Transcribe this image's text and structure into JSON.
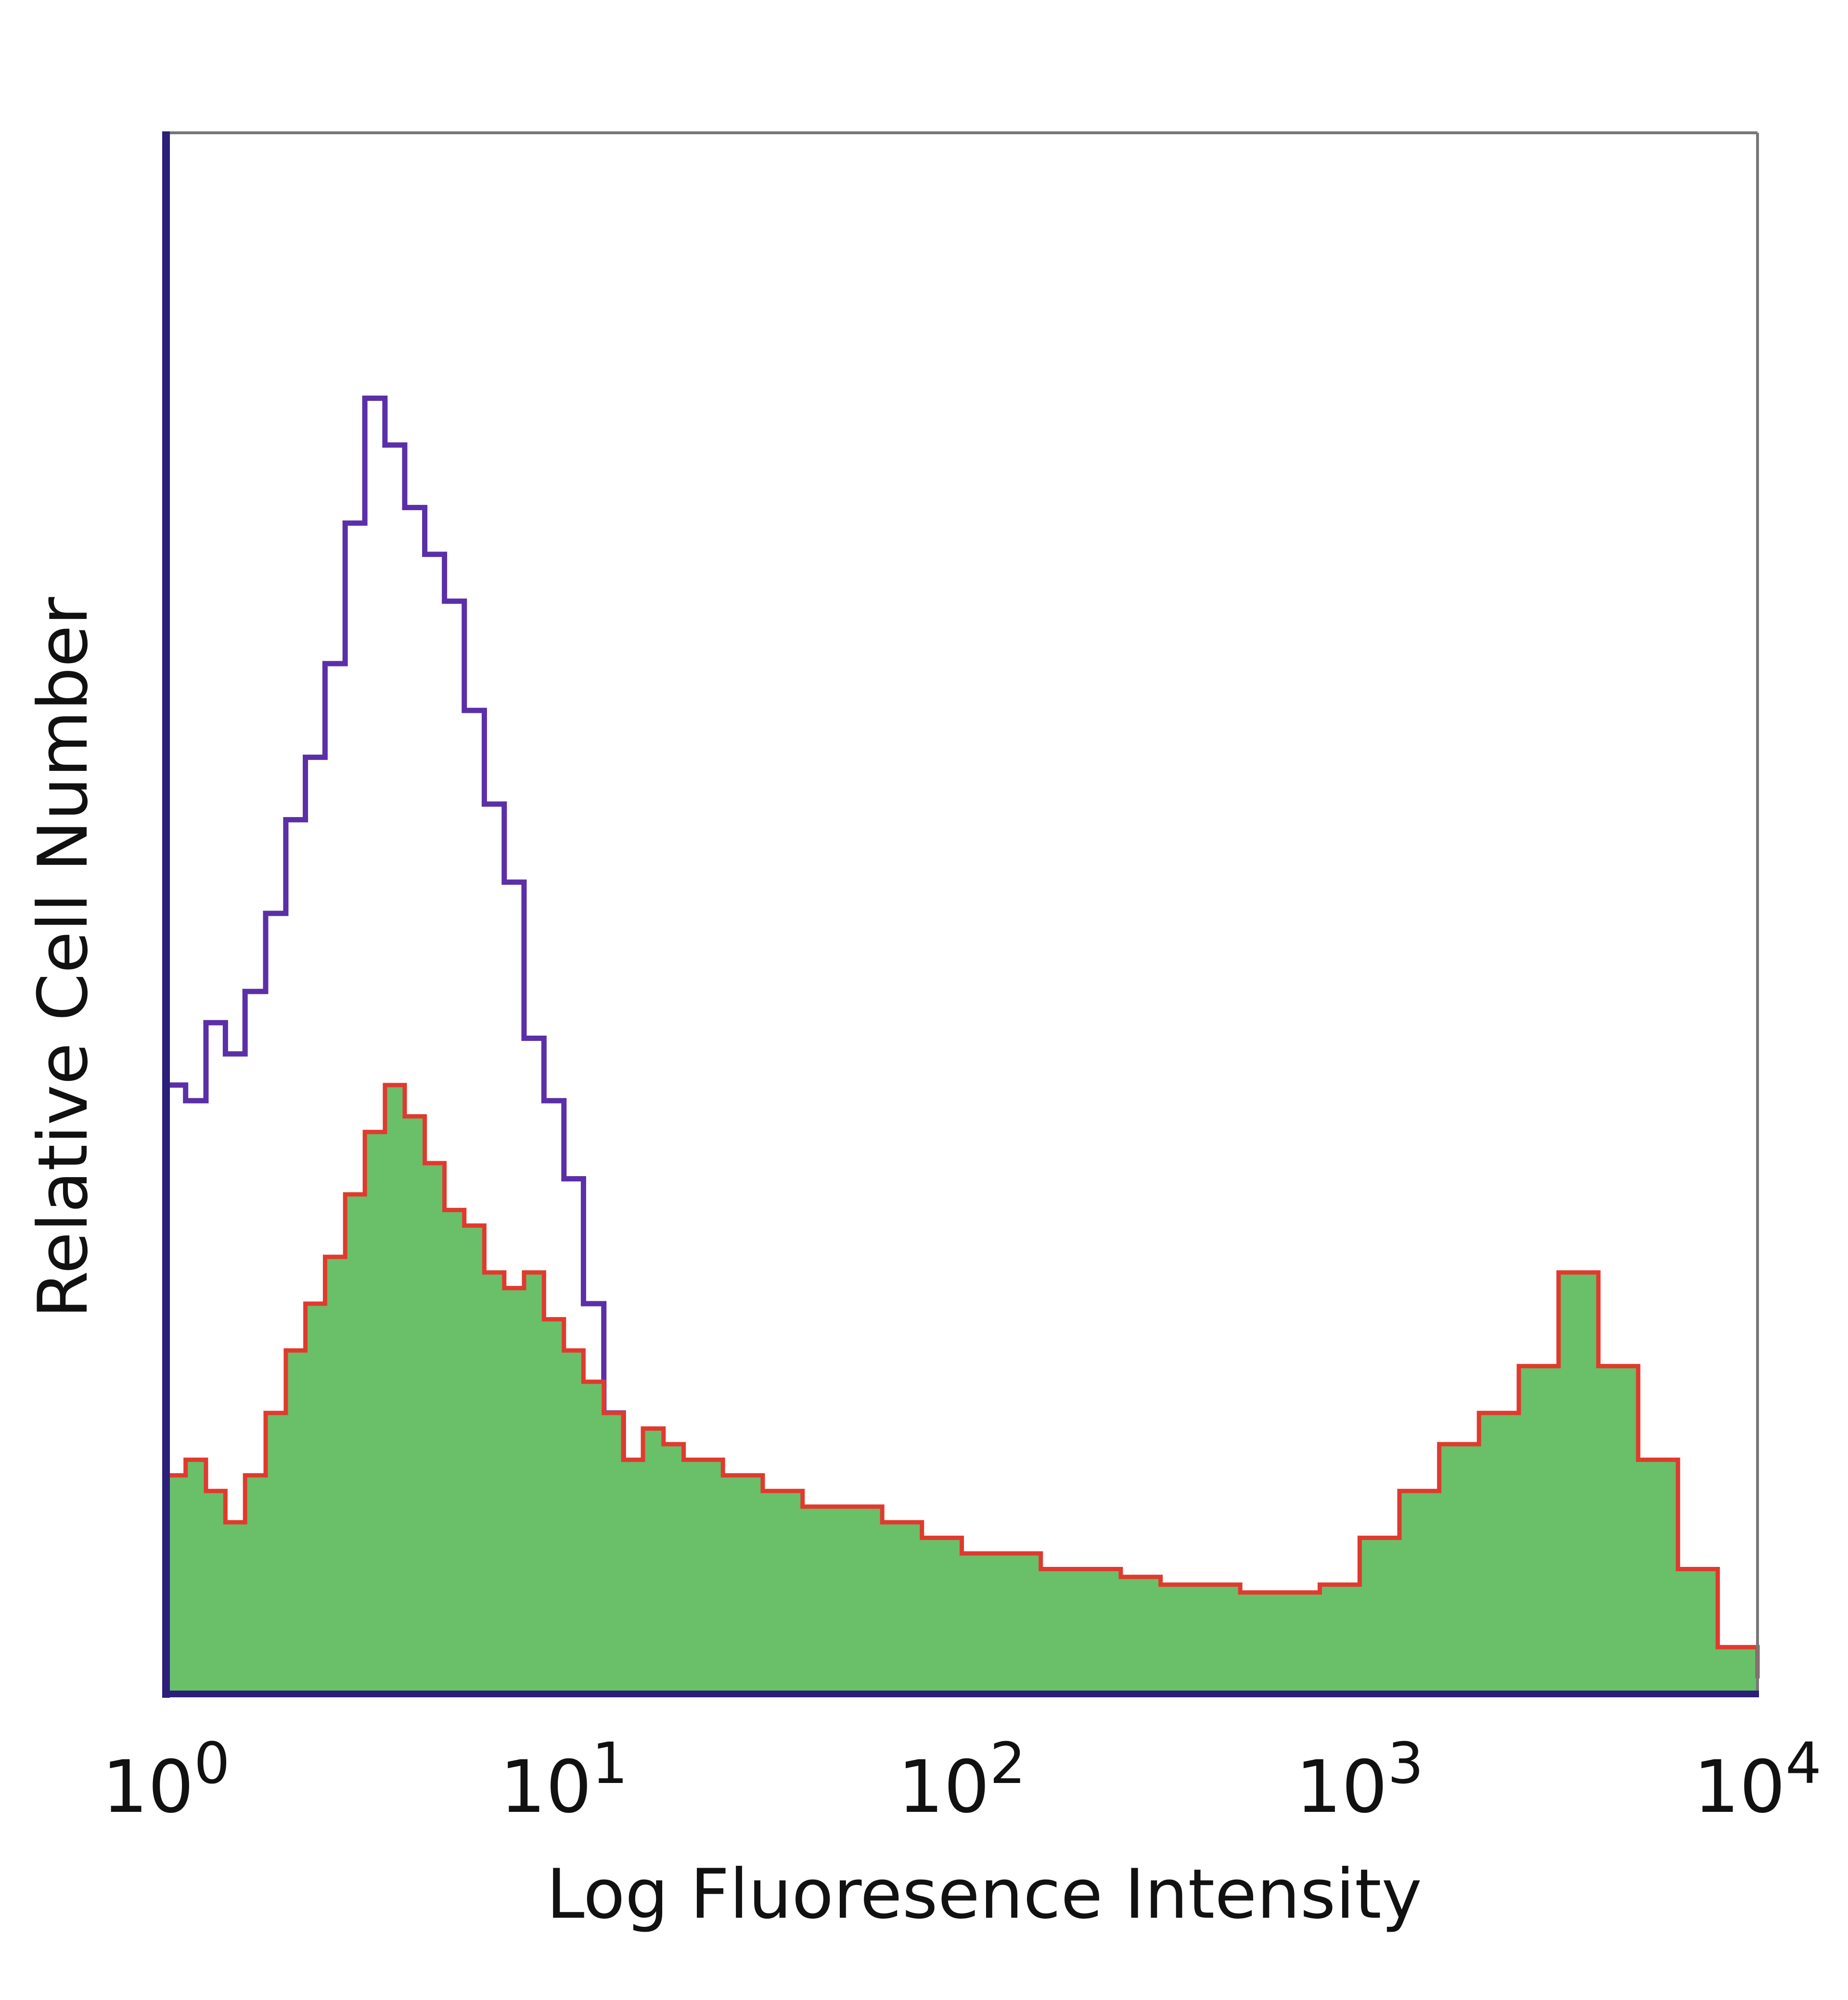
{
  "chart_data": {
    "type": "area",
    "title": "",
    "xlabel": "Log Fluoresence Intensity",
    "ylabel": "Relative Cell Number",
    "x_scale": "log",
    "xlim": [
      1,
      10000
    ],
    "ylim": [
      0,
      100
    ],
    "grid": false,
    "legend": "none",
    "x_ticks": [
      {
        "value": 1,
        "base": "10",
        "exp": "0"
      },
      {
        "value": 10,
        "base": "10",
        "exp": "1"
      },
      {
        "value": 100,
        "base": "10",
        "exp": "2"
      },
      {
        "value": 1000,
        "base": "10",
        "exp": "3"
      },
      {
        "value": 10000,
        "base": "10",
        "exp": "4"
      }
    ],
    "series": [
      {
        "role": "control",
        "style": "outline",
        "color": "#5b2fa8",
        "x": [
          1,
          1.12,
          1.26,
          1.41,
          1.58,
          1.78,
          2.0,
          2.24,
          2.51,
          2.82,
          3.16,
          3.55,
          3.98,
          4.47,
          5.01,
          5.62,
          6.31,
          7.08,
          7.94,
          8.91,
          10.0,
          11.2,
          12.6,
          14.1,
          15.8,
          17.8,
          20.0,
          25.1,
          31.6,
          39.8,
          50.1,
          63.1,
          79.4,
          100,
          1000,
          10000
        ],
        "values": [
          39,
          38,
          43,
          41,
          45,
          50,
          56,
          60,
          66,
          75,
          83,
          80,
          76,
          73,
          70,
          63,
          57,
          52,
          42,
          38,
          33,
          25,
          18,
          13,
          6,
          3,
          1,
          0.5,
          0.3,
          0.5,
          0.2,
          0.1,
          0.5,
          0.1,
          0,
          0
        ]
      },
      {
        "role": "stained",
        "style": "filled",
        "color": "#6abf69",
        "line_color": "#e03a2e",
        "x": [
          1,
          1.12,
          1.26,
          1.41,
          1.58,
          1.78,
          2.0,
          2.24,
          2.51,
          2.82,
          3.16,
          3.55,
          3.98,
          4.47,
          5.01,
          5.62,
          6.31,
          7.08,
          7.94,
          8.91,
          10.0,
          11.2,
          12.6,
          14.1,
          15.8,
          17.8,
          20.0,
          25.1,
          31.6,
          39.8,
          50.1,
          63.1,
          79.4,
          100,
          126,
          158,
          200,
          251,
          316,
          398,
          501,
          631,
          794,
          1000,
          1259,
          1585,
          1995,
          2512,
          3162,
          3981,
          5012,
          6310,
          7943,
          10000
        ],
        "values": [
          14,
          15,
          13,
          11,
          14,
          18,
          22,
          25,
          28,
          32,
          36,
          39,
          37,
          34,
          31,
          30,
          27,
          26,
          27,
          24,
          22,
          20,
          18,
          15,
          17,
          16,
          15,
          14,
          13,
          12,
          12,
          11,
          10,
          9,
          9,
          8,
          8,
          7.5,
          7,
          7,
          6.5,
          6.5,
          7,
          10,
          13,
          16,
          18,
          21,
          27,
          21,
          15,
          8,
          3,
          1
        ]
      }
    ]
  }
}
